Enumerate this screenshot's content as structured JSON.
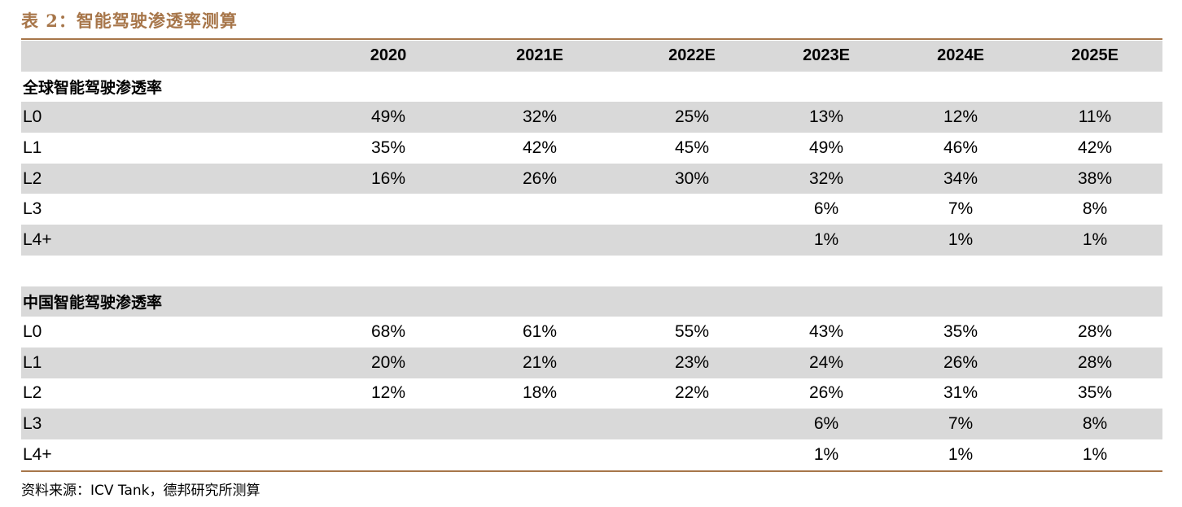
{
  "title": "表 2：智能驾驶渗透率测算",
  "columns": [
    "2020",
    "2021E",
    "2022E",
    "2023E",
    "2024E",
    "2025E"
  ],
  "global": {
    "heading": "全球智能驾驶渗透率",
    "rows": [
      {
        "label": "L0",
        "values": [
          "49%",
          "32%",
          "25%",
          "13%",
          "12%",
          "11%"
        ]
      },
      {
        "label": "L1",
        "values": [
          "35%",
          "42%",
          "45%",
          "49%",
          "46%",
          "42%"
        ]
      },
      {
        "label": "L2",
        "values": [
          "16%",
          "26%",
          "30%",
          "32%",
          "34%",
          "38%"
        ]
      },
      {
        "label": "L3",
        "values": [
          "",
          "",
          "",
          "6%",
          "7%",
          "8%"
        ]
      },
      {
        "label": "L4+",
        "values": [
          "",
          "",
          "",
          "1%",
          "1%",
          "1%"
        ]
      }
    ]
  },
  "china": {
    "heading": "中国智能驾驶渗透率",
    "rows": [
      {
        "label": "L0",
        "values": [
          "68%",
          "61%",
          "55%",
          "43%",
          "35%",
          "28%"
        ]
      },
      {
        "label": "L1",
        "values": [
          "20%",
          "21%",
          "23%",
          "24%",
          "26%",
          "28%"
        ]
      },
      {
        "label": "L2",
        "values": [
          "12%",
          "18%",
          "22%",
          "26%",
          "31%",
          "35%"
        ]
      },
      {
        "label": "L3",
        "values": [
          "",
          "",
          "",
          "6%",
          "7%",
          "8%"
        ]
      },
      {
        "label": "L4+",
        "values": [
          "",
          "",
          "",
          "1%",
          "1%",
          "1%"
        ]
      }
    ]
  },
  "source": "资料来源：ICV Tank，德邦研究所测算",
  "colors": {
    "accent": "#a7764a",
    "band": "#d9d9d9"
  }
}
